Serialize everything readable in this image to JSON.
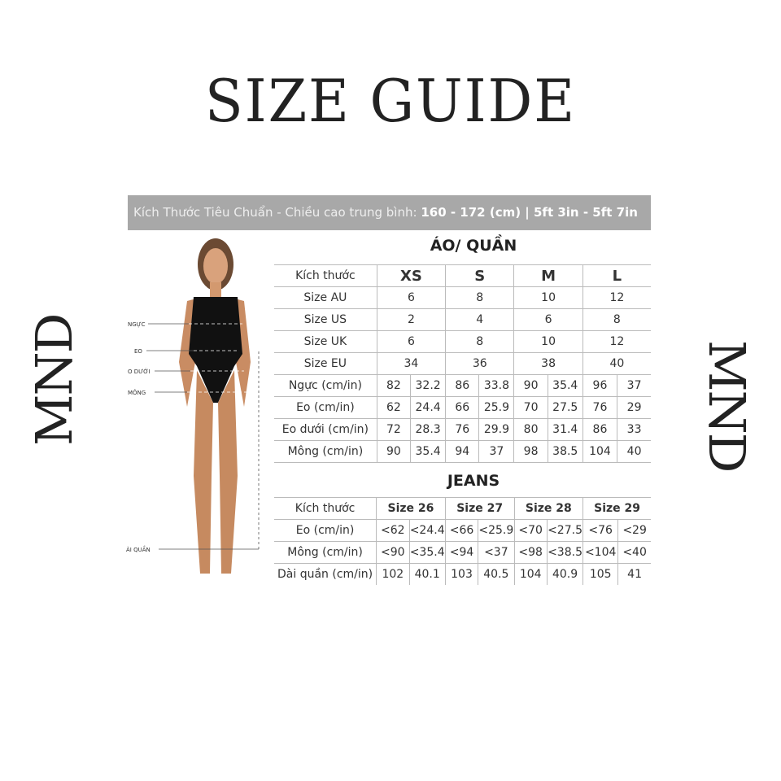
{
  "title": "SIZE GUIDE",
  "logo": "MND",
  "banner": {
    "prefix": "Kích Thước Tiêu Chuẩn - Chiều cao trung bình: ",
    "height_range": "160 - 172 (cm) | 5ft 3in - 5ft 7in"
  },
  "figure_labels": {
    "chest": "NGỰC",
    "waist": "EO",
    "low_waist": "O DƯỚI",
    "hip": "MÔNG",
    "length": "ÀI QUẦN"
  },
  "tops": {
    "title": "ÁO/ QUẦN",
    "header": [
      "Kích thước",
      "XS",
      "S",
      "M",
      "L"
    ],
    "size_rows": [
      [
        "Size AU",
        "6",
        "8",
        "10",
        "12"
      ],
      [
        "Size US",
        "2",
        "4",
        "6",
        "8"
      ],
      [
        "Size UK",
        "6",
        "8",
        "10",
        "12"
      ],
      [
        "Size EU",
        "34",
        "36",
        "38",
        "40"
      ]
    ],
    "measure_rows": [
      [
        "Ngực (cm/in)",
        "82",
        "32.2",
        "86",
        "33.8",
        "90",
        "35.4",
        "96",
        "37"
      ],
      [
        "Eo (cm/in)",
        "62",
        "24.4",
        "66",
        "25.9",
        "70",
        "27.5",
        "76",
        "29"
      ],
      [
        "Eo dưới (cm/in)",
        "72",
        "28.3",
        "76",
        "29.9",
        "80",
        "31.4",
        "86",
        "33"
      ],
      [
        "Mông (cm/in)",
        "90",
        "35.4",
        "94",
        "37",
        "98",
        "38.5",
        "104",
        "40"
      ]
    ]
  },
  "jeans": {
    "title": "JEANS",
    "header": [
      "Kích thước",
      "Size 26",
      "Size 27",
      "Size 28",
      "Size 29"
    ],
    "rows": [
      [
        "Eo (cm/in)",
        "<62",
        "<24.4",
        "<66",
        "<25.9",
        "<70",
        "<27.5",
        "<76",
        "<29"
      ],
      [
        "Mông (cm/in)",
        "<90",
        "<35.4",
        "<94",
        "<37",
        "<98",
        "<38.5",
        "<104",
        "<40"
      ],
      [
        "Dài quần (cm/in)",
        "102",
        "40.1",
        "103",
        "40.5",
        "104",
        "40.9",
        "105",
        "41"
      ]
    ]
  }
}
